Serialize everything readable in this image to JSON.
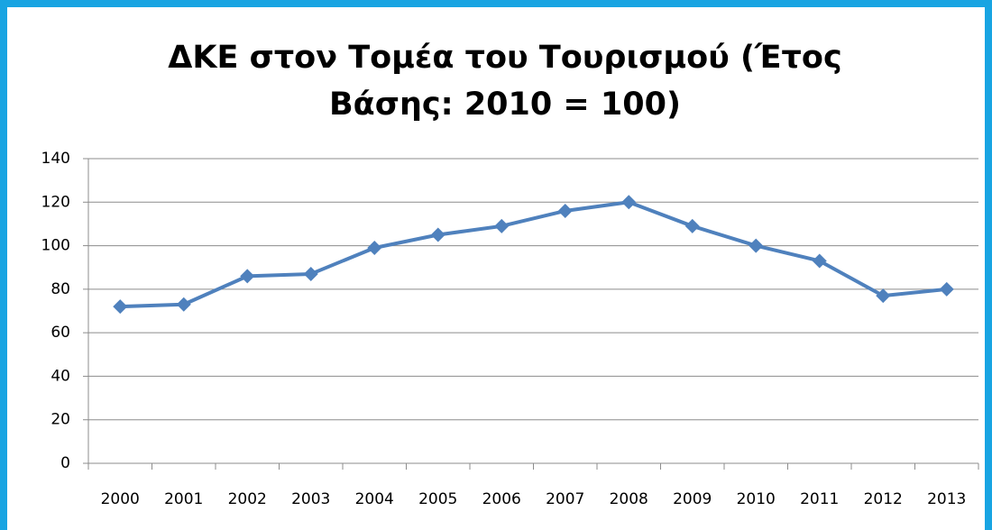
{
  "chart_data": {
    "type": "line",
    "title": "ΔΚΕ στον Τομέα του Τουρισμού (Έτος Βάσης: 2010 = 100)",
    "categories": [
      "2000",
      "2001",
      "2002",
      "2003",
      "2004",
      "2005",
      "2006",
      "2007",
      "2008",
      "2009",
      "2010",
      "2011",
      "2012",
      "2013"
    ],
    "series": [
      {
        "name": "ΔΚΕ",
        "color": "#4f81bd",
        "values": [
          72,
          73,
          86,
          87,
          99,
          105,
          109,
          116,
          120,
          109,
          100,
          93,
          77,
          80
        ]
      }
    ],
    "ylim": [
      0,
      140
    ],
    "yticks": [
      0,
      20,
      40,
      60,
      80,
      100,
      120,
      140
    ],
    "grid": true,
    "legend": false
  }
}
